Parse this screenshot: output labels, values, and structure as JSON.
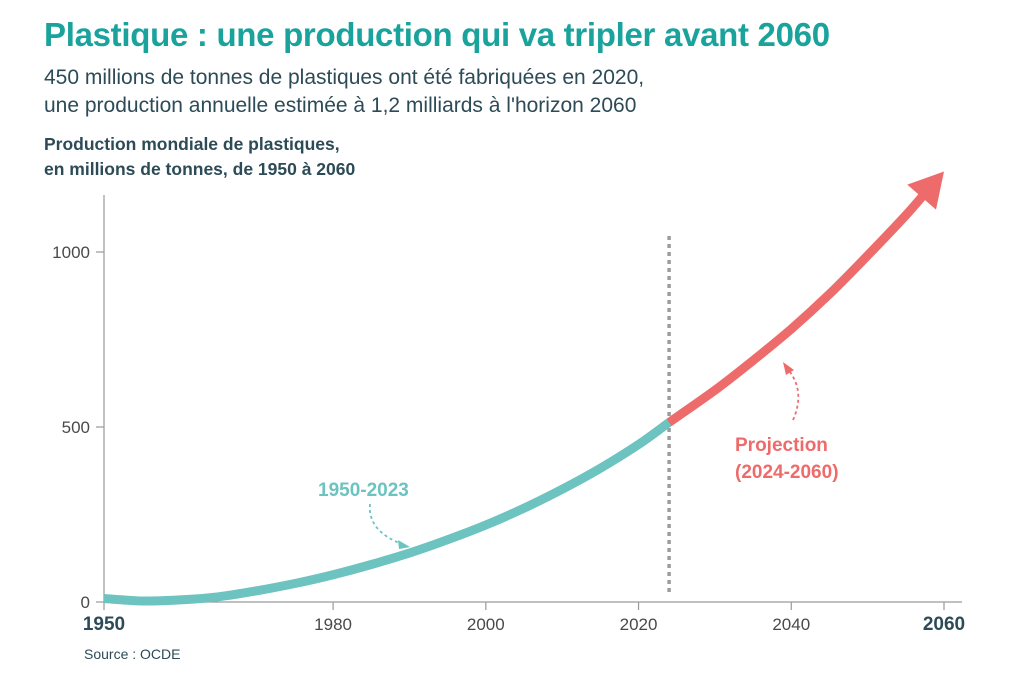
{
  "header": {
    "title": "Plastique : une production qui va tripler avant 2060",
    "subtitle_line1": "450 millions de tonnes de plastiques ont été fabriquées en 2020,",
    "subtitle_line2": "une production annuelle estimée à 1,2 milliards à l'horizon 2060",
    "chart_heading_line1": "Production mondiale de plastiques,",
    "chart_heading_line2": "en millions de tonnes, de 1950 à 2060"
  },
  "footer": {
    "source": "Source : OCDE"
  },
  "colors": {
    "historical": "#6cc3bf",
    "projection": "#ee6b6b",
    "title": "#1aa39c",
    "text_dark": "#2d4b57"
  },
  "chart_data": {
    "type": "line",
    "title": "",
    "xlabel": "",
    "ylabel": "",
    "xlim": [
      1950,
      2060
    ],
    "ylim": [
      0,
      1150
    ],
    "x_ticks": [
      {
        "value": 1950,
        "label": "1950",
        "bold": true
      },
      {
        "value": 1980,
        "label": "1980",
        "bold": false
      },
      {
        "value": 2000,
        "label": "2000",
        "bold": false
      },
      {
        "value": 2020,
        "label": "2020",
        "bold": false
      },
      {
        "value": 2040,
        "label": "2040",
        "bold": false
      },
      {
        "value": 2060,
        "label": "2060",
        "bold": true
      }
    ],
    "y_ticks": [
      {
        "value": 0,
        "label": "0"
      },
      {
        "value": 500,
        "label": "500"
      },
      {
        "value": 1000,
        "label": "1000"
      }
    ],
    "grid": false,
    "divider_year": 2024,
    "series": [
      {
        "name": "1950-2023",
        "color": "#6cc3bf",
        "x": [
          1950,
          1955,
          1960,
          1965,
          1970,
          1975,
          1980,
          1985,
          1990,
          1995,
          2000,
          2005,
          2010,
          2015,
          2020,
          2024
        ],
        "y": [
          10,
          3,
          6,
          15,
          32,
          53,
          78,
          107,
          140,
          178,
          220,
          268,
          322,
          382,
          450,
          513
        ]
      },
      {
        "name": "Projection (2024-2060)",
        "color": "#ee6b6b",
        "x": [
          2024,
          2030,
          2035,
          2040,
          2045,
          2050,
          2055,
          2060
        ],
        "y": [
          513,
          605,
          690,
          780,
          880,
          990,
          1105,
          1230
        ]
      }
    ],
    "annotations": [
      {
        "text": "1950-2023",
        "color": "#6cc3bf"
      },
      {
        "text_line1": "Projection",
        "text_line2": "(2024-2060)",
        "color": "#ee6b6b"
      }
    ]
  }
}
